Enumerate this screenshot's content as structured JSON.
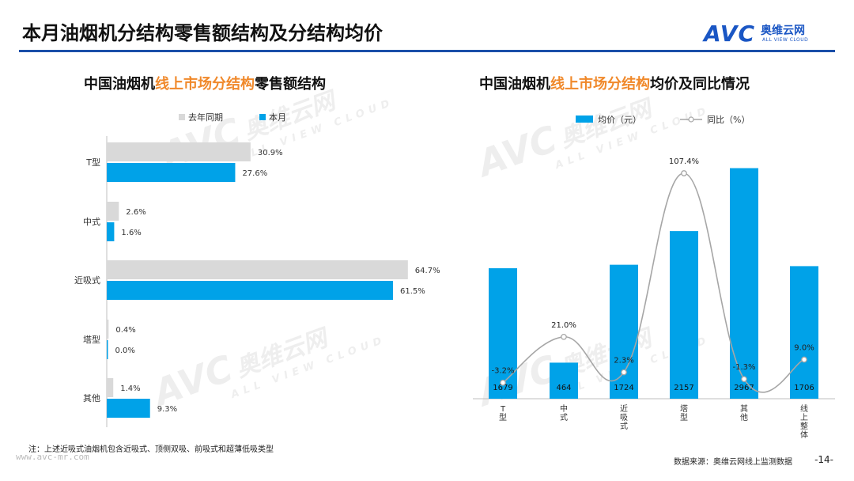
{
  "header": {
    "title": "本月油烟机分结构零售额结构及分结构均价",
    "brand_logo": "AVC",
    "brand_cn": "奥维云网",
    "brand_en": "ALL VIEW CLOUD"
  },
  "watermark": {
    "logo": "AVC",
    "cn": "奥维云网",
    "en": "ALL VIEW CLOUD"
  },
  "left_chart": {
    "title_pre": "中国油烟机",
    "title_hl": "线上市场分结构",
    "title_post": "零售额结构"
  },
  "right_chart": {
    "title_pre": "中国油烟机",
    "title_hl": "线上市场分结构",
    "title_post": "均价及同比情况"
  },
  "chart_data": [
    {
      "type": "bar",
      "orientation": "horizontal",
      "categories": [
        "T型",
        "中式",
        "近吸式",
        "塔型",
        "其他"
      ],
      "series": [
        {
          "name": "去年同期",
          "values": [
            30.9,
            2.6,
            64.7,
            0.4,
            1.4
          ],
          "labels": [
            "30.9%",
            "2.6%",
            "64.7%",
            "0.4%",
            "1.4%"
          ],
          "color": "#d9d9d9"
        },
        {
          "name": "本月",
          "values": [
            27.6,
            1.6,
            61.5,
            0.0,
            9.3
          ],
          "labels": [
            "27.6%",
            "1.6%",
            "61.5%",
            "0.0%",
            "9.3%"
          ],
          "color": "#00a2e8"
        }
      ],
      "xlim": [
        0,
        70
      ],
      "legend": "top"
    },
    {
      "type": "bar",
      "categories": [
        "T型",
        "中式",
        "近吸式",
        "塔型",
        "其他",
        "线上整体"
      ],
      "series": [
        {
          "name": "均价（元）",
          "type": "bar",
          "values": [
            1679,
            464,
            1724,
            2157,
            2967,
            1706
          ],
          "labels": [
            "1679",
            "464",
            "1724",
            "2157",
            "2967",
            "1706"
          ],
          "color": "#00a2e8"
        },
        {
          "name": "同比（%）",
          "type": "line",
          "values": [
            -3.2,
            21.0,
            2.3,
            107.4,
            -1.3,
            9.0
          ],
          "labels": [
            "-3.2%",
            "21.0%",
            "2.3%",
            "107.4%",
            "-1.3%",
            "9.0%"
          ],
          "color": "#a6a6a6"
        }
      ],
      "bar_ylim": [
        0,
        3400
      ],
      "line_ylim": [
        -10,
        112
      ],
      "legend": "top"
    }
  ],
  "footer": {
    "note": "注：上述近吸式油烟机包含近吸式、顶侧双吸、前吸式和超薄低吸类型",
    "site": "www.avc-mr.com",
    "source": "数据来源：奥维云网线上监测数据",
    "page": "-14-"
  }
}
